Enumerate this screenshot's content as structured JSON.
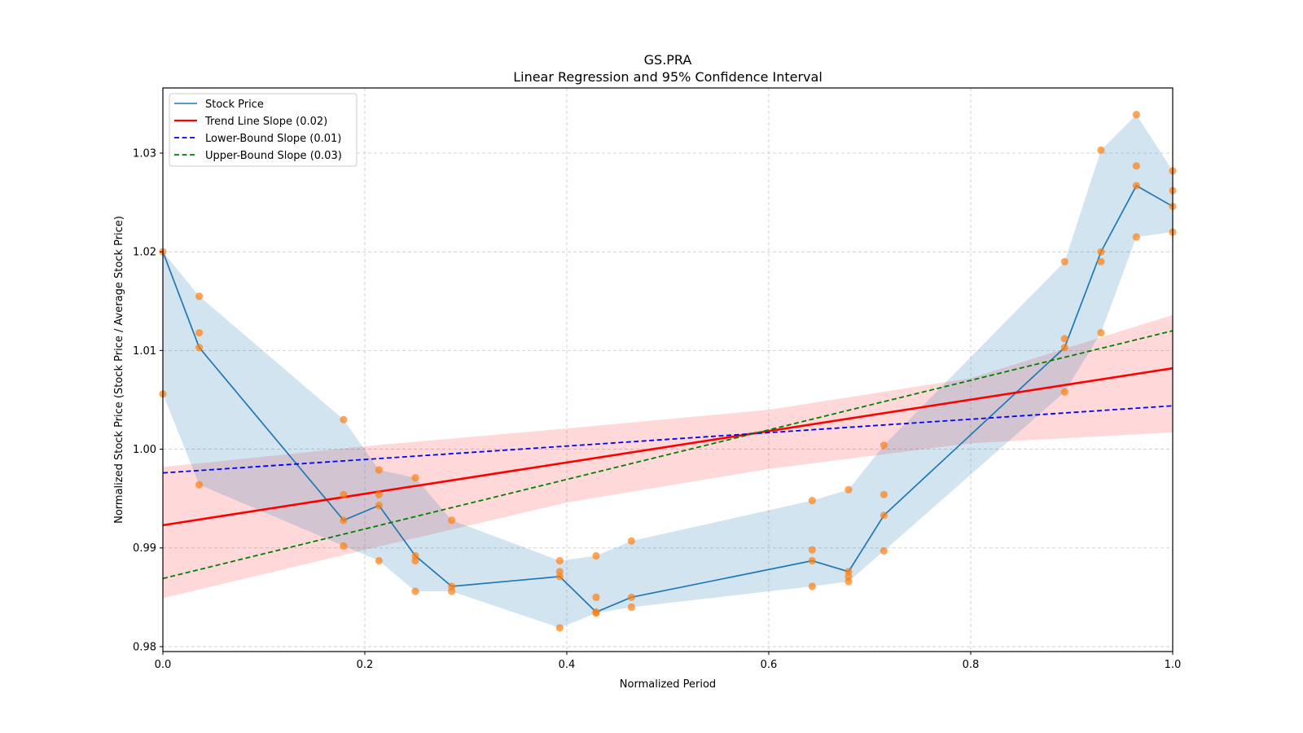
{
  "chart_data": {
    "type": "line",
    "title": "GS.PRA",
    "subtitle": "Linear Regression and 95% Confidence Interval",
    "xlabel": "Normalized Period",
    "ylabel": "Normalized Stock Price (Stock Price / Average Stock Price)",
    "xlim": [
      0.0,
      1.0
    ],
    "ylim": [
      0.9795,
      1.0366
    ],
    "xticks": [
      0.0,
      0.2,
      0.4,
      0.6,
      0.8,
      1.0
    ],
    "xtick_labels": [
      "0.0",
      "0.2",
      "0.4",
      "0.6",
      "0.8",
      "1.0"
    ],
    "yticks": [
      0.98,
      0.99,
      1.0,
      1.01,
      1.02,
      1.03
    ],
    "ytick_labels": [
      "0.98",
      "0.99",
      "1.00",
      "1.01",
      "1.02",
      "1.03"
    ],
    "grid": true,
    "legend_position": "top-left",
    "colors": {
      "stock": "#1f77b4",
      "stock_band": "#1f77b4",
      "scatter": "#ff7f0e",
      "trend": "#ff0000",
      "trend_band": "#ff0000",
      "lower_bound": "#0000ff",
      "upper_bound": "#008000"
    },
    "legend": [
      {
        "label": "Stock Price",
        "style": "solid",
        "color": "#1f77b4"
      },
      {
        "label": "Trend Line Slope (0.02)",
        "style": "solid",
        "color": "#ff0000"
      },
      {
        "label": "Lower-Bound Slope (0.01)",
        "style": "dashed",
        "color": "#0000ff"
      },
      {
        "label": "Upper-Bound Slope (0.03)",
        "style": "dashed",
        "color": "#008000"
      }
    ],
    "x": [
      0.0,
      0.036,
      0.179,
      0.214,
      0.25,
      0.286,
      0.393,
      0.429,
      0.464,
      0.643,
      0.679,
      0.714,
      0.893,
      0.929,
      0.964,
      1.0
    ],
    "stock_price": [
      1.02,
      1.0103,
      0.9928,
      0.9943,
      0.9892,
      0.9861,
      0.9871,
      0.9835,
      0.985,
      0.9887,
      0.9876,
      0.9933,
      1.0103,
      1.02,
      1.0267,
      1.0246
    ],
    "stock_band_upper": [
      1.02,
      1.0155,
      1.003,
      0.9979,
      0.9971,
      0.9928,
      0.9887,
      0.9892,
      0.9907,
      0.9948,
      0.9959,
      1.0004,
      1.019,
      1.0303,
      1.0339,
      1.0282
    ],
    "stock_band_lower": [
      1.0056,
      0.9964,
      0.9902,
      0.9887,
      0.9856,
      0.9856,
      0.9819,
      0.9834,
      0.984,
      0.9861,
      0.9866,
      0.9897,
      1.0058,
      1.0118,
      1.0215,
      1.022
    ],
    "scatter_points": [
      [
        0.0,
        1.02
      ],
      [
        0.0,
        1.0056
      ],
      [
        0.036,
        1.0155
      ],
      [
        0.036,
        1.0118
      ],
      [
        0.036,
        1.0103
      ],
      [
        0.036,
        0.9964
      ],
      [
        0.179,
        1.003
      ],
      [
        0.179,
        0.9954
      ],
      [
        0.179,
        0.9928
      ],
      [
        0.179,
        0.9902
      ],
      [
        0.214,
        0.9979
      ],
      [
        0.214,
        0.9954
      ],
      [
        0.214,
        0.9943
      ],
      [
        0.214,
        0.9887
      ],
      [
        0.25,
        0.9971
      ],
      [
        0.25,
        0.9892
      ],
      [
        0.25,
        0.9887
      ],
      [
        0.25,
        0.9856
      ],
      [
        0.286,
        0.9928
      ],
      [
        0.286,
        0.9861
      ],
      [
        0.286,
        0.9856
      ],
      [
        0.393,
        0.9887
      ],
      [
        0.393,
        0.9876
      ],
      [
        0.393,
        0.9871
      ],
      [
        0.393,
        0.9819
      ],
      [
        0.429,
        0.9892
      ],
      [
        0.429,
        0.985
      ],
      [
        0.429,
        0.9835
      ],
      [
        0.429,
        0.9834
      ],
      [
        0.464,
        0.9907
      ],
      [
        0.464,
        0.985
      ],
      [
        0.464,
        0.984
      ],
      [
        0.643,
        0.9948
      ],
      [
        0.643,
        0.9898
      ],
      [
        0.643,
        0.9887
      ],
      [
        0.643,
        0.9861
      ],
      [
        0.679,
        0.9959
      ],
      [
        0.679,
        0.9876
      ],
      [
        0.679,
        0.9871
      ],
      [
        0.679,
        0.9866
      ],
      [
        0.714,
        1.0004
      ],
      [
        0.714,
        0.9954
      ],
      [
        0.714,
        0.9933
      ],
      [
        0.714,
        0.9897
      ],
      [
        0.893,
        1.019
      ],
      [
        0.893,
        1.0112
      ],
      [
        0.893,
        1.0103
      ],
      [
        0.893,
        1.0058
      ],
      [
        0.929,
        1.0303
      ],
      [
        0.929,
        1.02
      ],
      [
        0.929,
        1.019
      ],
      [
        0.929,
        1.0118
      ],
      [
        0.964,
        1.0339
      ],
      [
        0.964,
        1.0287
      ],
      [
        0.964,
        1.0267
      ],
      [
        0.964,
        1.0215
      ],
      [
        1.0,
        1.0282
      ],
      [
        1.0,
        1.0262
      ],
      [
        1.0,
        1.0246
      ],
      [
        1.0,
        1.022
      ]
    ],
    "trend_line": {
      "x": [
        0.0,
        1.0
      ],
      "y": [
        0.9923,
        1.0082
      ]
    },
    "trend_band": {
      "x": [
        0.0,
        0.2,
        0.4,
        0.6,
        0.8,
        1.0
      ],
      "upper": [
        0.9982,
        1.0003,
        1.0021,
        1.004,
        1.0072,
        1.0136
      ],
      "lower": [
        0.9849,
        0.9898,
        0.9946,
        0.998,
        1.0006,
        1.0017
      ]
    },
    "lower_bound_line": {
      "x": [
        0.0,
        1.0
      ],
      "y": [
        0.9976,
        1.0044
      ]
    },
    "upper_bound_line": {
      "x": [
        0.0,
        1.0
      ],
      "y": [
        0.9869,
        1.012
      ]
    }
  }
}
